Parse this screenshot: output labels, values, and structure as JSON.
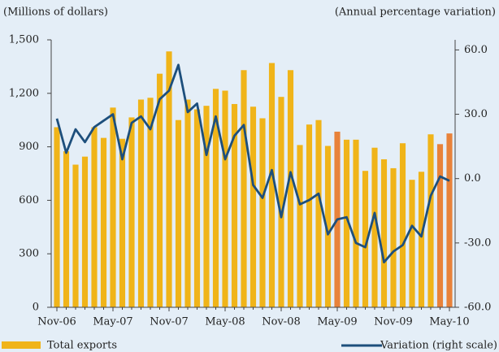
{
  "chart_data": {
    "type": "bar_line",
    "y_axis_label": "(Millions of dollars)",
    "y2_axis_label": "(Annual percentage variation)",
    "categories": [
      "Nov-06",
      null,
      null,
      null,
      null,
      null,
      "May-07",
      null,
      null,
      null,
      null,
      null,
      "Nov-07",
      null,
      null,
      null,
      null,
      null,
      "May-08",
      null,
      null,
      null,
      null,
      null,
      "Nov-08",
      null,
      null,
      null,
      null,
      null,
      "May-09",
      null,
      null,
      null,
      null,
      null,
      "Nov-09",
      null,
      null,
      null,
      null,
      null,
      "May-10"
    ],
    "series": [
      {
        "name": "Total exports",
        "type": "bar",
        "color": "#f0b419",
        "colors": [
          "#f0b419",
          "#f0b419",
          "#f0b419",
          "#f0b419",
          "#f0b419",
          "#f0b419",
          "#f0b419",
          "#f0b419",
          "#f0b419",
          "#f0b419",
          "#f0b419",
          "#f0b419",
          "#f0b419",
          "#f0b419",
          "#f0b419",
          "#f0b419",
          "#f0b419",
          "#f0b419",
          "#f0b419",
          "#f0b419",
          "#f0b419",
          "#f0b419",
          "#f0b419",
          "#f0b419",
          "#f0b419",
          "#f0b419",
          "#f0b419",
          "#f0b419",
          "#f0b419",
          "#f0b419",
          "#e8823a",
          "#f0b419",
          "#f0b419",
          "#f0b419",
          "#f0b419",
          "#f0b419",
          "#f0b419",
          "#f0b419",
          "#f0b419",
          "#f0b419",
          "#f0b419",
          "#e8823a",
          "#e8823a"
        ],
        "values": [
          1010,
          875,
          800,
          845,
          1010,
          950,
          1120,
          945,
          1065,
          1165,
          1175,
          1310,
          1435,
          1050,
          1165,
          1110,
          1130,
          1225,
          1215,
          1140,
          1330,
          1125,
          1060,
          1370,
          1180,
          1330,
          910,
          1025,
          1050,
          905,
          985,
          940,
          940,
          765,
          895,
          830,
          780,
          920,
          715,
          760,
          970,
          915,
          975
        ]
      },
      {
        "name": "Variation (right scale)",
        "type": "line",
        "axis": "y2",
        "color": "#1d4f7c",
        "values": [
          28,
          12,
          23,
          17,
          24,
          27,
          30,
          9,
          26,
          29,
          23,
          37,
          41,
          53,
          31,
          35,
          11,
          29,
          9,
          20,
          25,
          -3,
          -9,
          4,
          -18,
          3,
          -12,
          -10,
          -7,
          -26,
          -19,
          -18,
          -30,
          -32,
          -16,
          -39,
          -34,
          -31,
          -22,
          -27,
          -8,
          1,
          -1
        ]
      }
    ],
    "ylim": [
      0,
      1500
    ],
    "yticks": [
      0,
      300,
      600,
      900,
      {
        "value": 1200,
        "label": "1,200"
      },
      {
        "value": 1500,
        "label": "1,500"
      }
    ],
    "y2lim": [
      -60,
      64.7
    ],
    "y2ticks": [
      {
        "value": -60,
        "label": "-60.0"
      },
      {
        "value": -30,
        "label": "-30.0"
      },
      {
        "value": 0,
        "label": "0.0"
      },
      {
        "value": 30,
        "label": "30.0"
      },
      {
        "value": 60,
        "label": "60.0"
      }
    ],
    "grid": false
  }
}
